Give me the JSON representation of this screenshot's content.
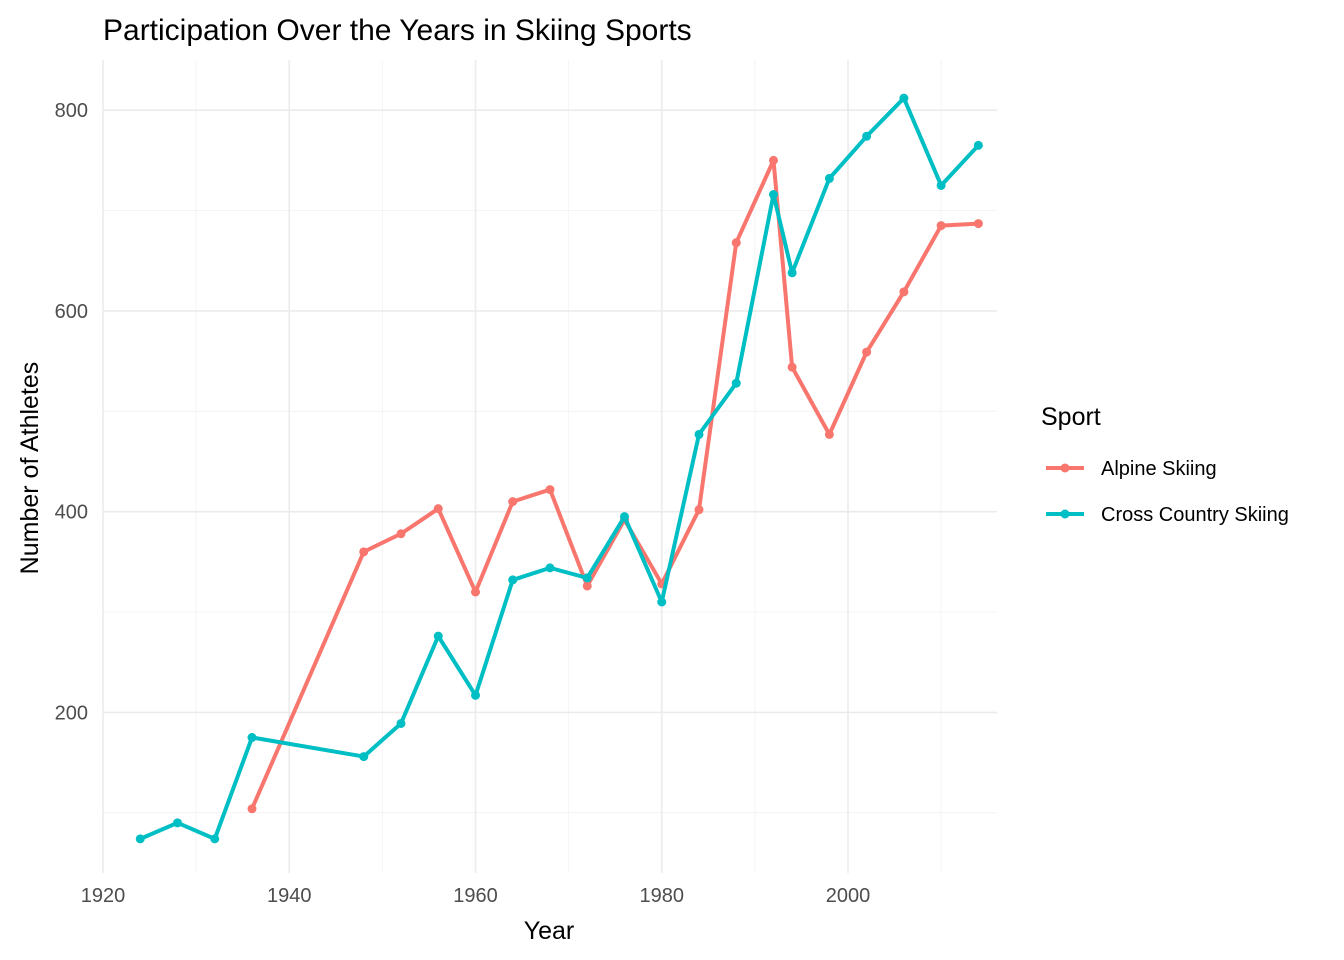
{
  "chart_data": {
    "type": "line",
    "title": "Participation Over the Years in Skiing Sports",
    "xlabel": "Year",
    "ylabel": "Number of Athletes",
    "xlim": [
      1920,
      2016
    ],
    "ylim": [
      40,
      850
    ],
    "x_ticks": [
      1920,
      1940,
      1960,
      1980,
      2000
    ],
    "y_ticks": [
      200,
      400,
      600,
      800
    ],
    "grid": true,
    "legend": {
      "title": "Sport",
      "position": "right"
    },
    "series": [
      {
        "name": "Alpine Skiing",
        "color": "#F8766D",
        "points": [
          {
            "x": 1936,
            "y": 104
          },
          {
            "x": 1948,
            "y": 360
          },
          {
            "x": 1952,
            "y": 378
          },
          {
            "x": 1956,
            "y": 403
          },
          {
            "x": 1960,
            "y": 320
          },
          {
            "x": 1964,
            "y": 410
          },
          {
            "x": 1968,
            "y": 422
          },
          {
            "x": 1972,
            "y": 326
          },
          {
            "x": 1976,
            "y": 392
          },
          {
            "x": 1980,
            "y": 328
          },
          {
            "x": 1984,
            "y": 402
          },
          {
            "x": 1988,
            "y": 668
          },
          {
            "x": 1992,
            "y": 750
          },
          {
            "x": 1994,
            "y": 544
          },
          {
            "x": 1998,
            "y": 477
          },
          {
            "x": 2002,
            "y": 559
          },
          {
            "x": 2006,
            "y": 619
          },
          {
            "x": 2010,
            "y": 685
          },
          {
            "x": 2014,
            "y": 687
          }
        ]
      },
      {
        "name": "Cross Country Skiing",
        "color": "#00BFC4",
        "points": [
          {
            "x": 1924,
            "y": 74
          },
          {
            "x": 1928,
            "y": 90
          },
          {
            "x": 1932,
            "y": 74
          },
          {
            "x": 1936,
            "y": 175
          },
          {
            "x": 1948,
            "y": 156
          },
          {
            "x": 1952,
            "y": 189
          },
          {
            "x": 1956,
            "y": 276
          },
          {
            "x": 1960,
            "y": 217
          },
          {
            "x": 1964,
            "y": 332
          },
          {
            "x": 1968,
            "y": 344
          },
          {
            "x": 1972,
            "y": 334
          },
          {
            "x": 1976,
            "y": 395
          },
          {
            "x": 1980,
            "y": 310
          },
          {
            "x": 1984,
            "y": 477
          },
          {
            "x": 1988,
            "y": 528
          },
          {
            "x": 1992,
            "y": 716
          },
          {
            "x": 1994,
            "y": 638
          },
          {
            "x": 1998,
            "y": 732
          },
          {
            "x": 2002,
            "y": 774
          },
          {
            "x": 2006,
            "y": 812
          },
          {
            "x": 2010,
            "y": 725
          },
          {
            "x": 2014,
            "y": 765
          }
        ]
      }
    ]
  }
}
